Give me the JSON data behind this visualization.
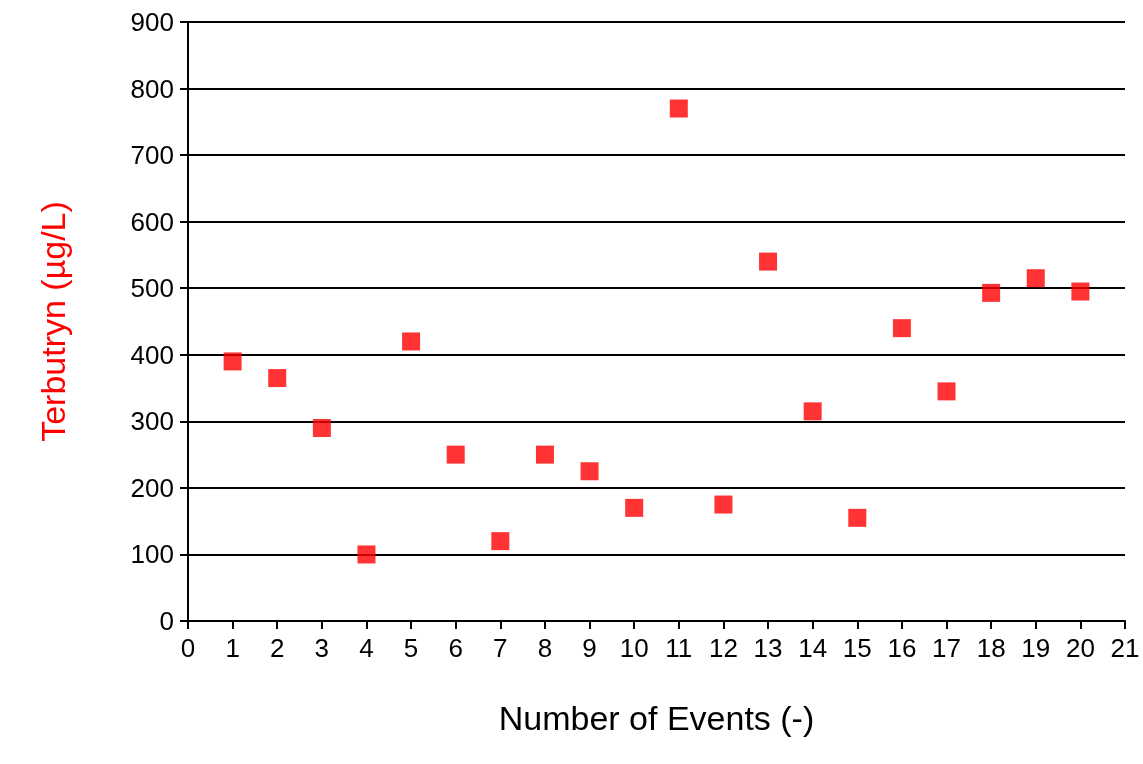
{
  "chart_data": {
    "type": "scatter",
    "xlabel": "Number of Events (-)",
    "ylabel": "Terbutryn (µg/L)",
    "x": [
      1,
      2,
      3,
      4,
      5,
      6,
      7,
      8,
      9,
      10,
      11,
      12,
      13,
      14,
      15,
      16,
      17,
      18,
      19,
      20
    ],
    "series": [
      {
        "color": "#ff0000",
        "values": [
          390,
          365,
          290,
          100,
          420,
          250,
          120,
          250,
          225,
          170,
          770,
          175,
          540,
          315,
          155,
          440,
          345,
          493,
          515,
          495
        ]
      }
    ],
    "xlim": [
      0,
      21
    ],
    "xticks": [
      0,
      1,
      2,
      3,
      4,
      5,
      6,
      7,
      8,
      9,
      10,
      11,
      12,
      13,
      14,
      15,
      16,
      17,
      18,
      19,
      20,
      21
    ],
    "ylim": [
      0,
      900
    ],
    "yticks": [
      0,
      100,
      200,
      300,
      400,
      500,
      600,
      700,
      800,
      900
    ],
    "grid": "y",
    "marker": "square"
  }
}
